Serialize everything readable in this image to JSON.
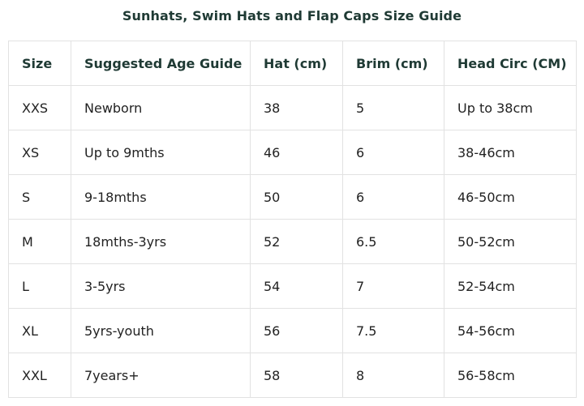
{
  "title": "Sunhats, Swim Hats and Flap Caps Size Guide",
  "table": {
    "headers": [
      "Size",
      "Suggested Age Guide",
      "Hat (cm)",
      "Brim (cm)",
      "Head Circ (CM)"
    ],
    "rows": [
      [
        "XXS",
        "Newborn",
        "38",
        "5",
        "Up to 38cm"
      ],
      [
        "XS",
        "Up to 9mths",
        "46",
        "6",
        "38-46cm"
      ],
      [
        "S",
        "9-18mths",
        "50",
        "6",
        "46-50cm"
      ],
      [
        "M",
        "18mths-3yrs",
        "52",
        "6.5",
        "50-52cm"
      ],
      [
        "L",
        "3-5yrs",
        "54",
        "7",
        "52-54cm"
      ],
      [
        "XL",
        "5yrs-youth",
        "56",
        "7.5",
        "54-56cm"
      ],
      [
        "XXL",
        "7years+",
        "58",
        "8",
        "56-58cm"
      ]
    ]
  },
  "colors": {
    "heading": "#1f3a34",
    "border": "#e2e2e2",
    "text": "#222222"
  }
}
